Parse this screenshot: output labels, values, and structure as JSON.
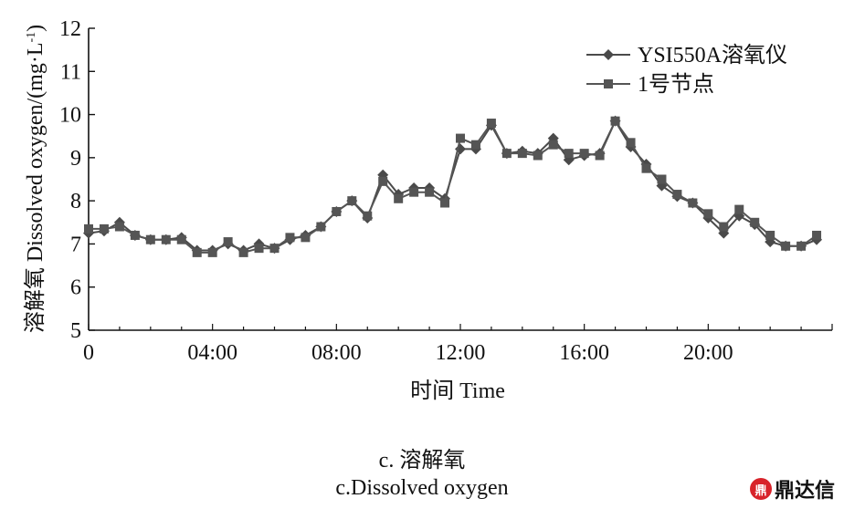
{
  "chart_data": {
    "type": "line",
    "xlabel": "时间  Time",
    "ylabel": "溶解氧  Dissolved oxygen/(mg·L",
    "ylabel_sup": "-1",
    "ylabel_close": ")",
    "xlim": [
      0,
      24
    ],
    "ylim": [
      5,
      12
    ],
    "x_ticks": [
      {
        "value": 0,
        "label": "0"
      },
      {
        "value": 4,
        "label": "04:00"
      },
      {
        "value": 8,
        "label": "08:00"
      },
      {
        "value": 12,
        "label": "12:00"
      },
      {
        "value": 16,
        "label": "16:00"
      },
      {
        "value": 20,
        "label": "20:00"
      }
    ],
    "y_ticks": [
      5,
      6,
      7,
      8,
      9,
      10,
      11,
      12
    ],
    "grid": false,
    "legend_position": "top-right",
    "x": [
      0,
      0.5,
      1,
      1.5,
      2,
      2.5,
      3,
      3.5,
      4,
      4.5,
      5,
      5.5,
      6,
      6.5,
      7,
      7.5,
      8,
      8.5,
      9,
      9.5,
      10,
      10.5,
      11,
      11.5,
      12,
      12.5,
      13,
      13.5,
      14,
      14.5,
      15,
      15.5,
      16,
      16.5,
      17,
      17.5,
      18,
      18.5,
      19,
      19.5,
      20,
      20.5,
      21,
      21.5,
      22,
      22.5,
      23,
      23.5
    ],
    "series": [
      {
        "name": "YSI550A溶氧仪",
        "marker": "diamond",
        "color": "#4a4a4a",
        "values": [
          7.25,
          7.3,
          7.5,
          7.2,
          7.1,
          7.1,
          7.15,
          6.85,
          6.85,
          7.0,
          6.85,
          7.0,
          6.9,
          7.1,
          7.2,
          7.4,
          7.75,
          8.0,
          7.6,
          8.6,
          8.15,
          8.3,
          8.3,
          8.05,
          9.2,
          9.2,
          9.75,
          9.1,
          9.15,
          9.1,
          9.45,
          8.95,
          9.05,
          9.1,
          9.85,
          9.25,
          8.85,
          8.35,
          8.1,
          7.95,
          7.6,
          7.25,
          7.65,
          7.45,
          7.05,
          6.95,
          6.95,
          7.1
        ]
      },
      {
        "name": "1号节点",
        "marker": "square",
        "color": "#555555",
        "values": [
          7.35,
          7.35,
          7.4,
          7.2,
          7.1,
          7.1,
          7.1,
          6.8,
          6.8,
          7.05,
          6.8,
          6.9,
          6.9,
          7.15,
          7.15,
          7.4,
          7.75,
          8.0,
          7.65,
          8.45,
          8.05,
          8.2,
          8.2,
          7.95,
          9.45,
          9.3,
          9.8,
          9.1,
          9.1,
          9.05,
          9.3,
          9.1,
          9.1,
          9.05,
          9.85,
          9.35,
          8.75,
          8.5,
          8.15,
          7.95,
          7.7,
          7.4,
          7.8,
          7.5,
          7.2,
          6.95,
          6.95,
          7.2
        ]
      }
    ]
  },
  "caption": {
    "line1": "c.  溶解氧",
    "line2": "c.Dissolved oxygen"
  },
  "watermark": {
    "icon_text": "鼎",
    "text": "鼎达信",
    "color": "#d8232a"
  }
}
